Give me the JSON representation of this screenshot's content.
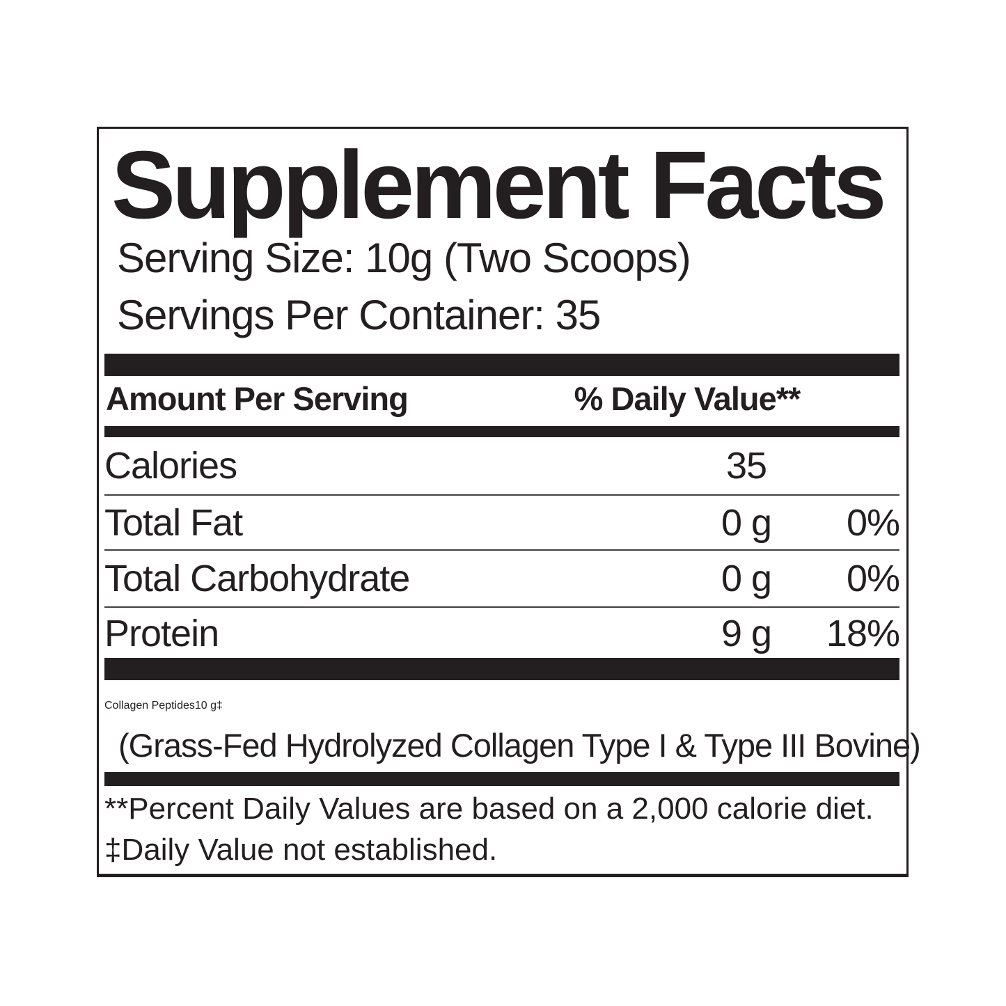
{
  "label": {
    "title": "Supplement Facts",
    "serving_size": "Serving Size: 10g (Two Scoops)",
    "servings_per_container": "Servings Per Container: 35",
    "columns": {
      "amount_header": "Amount Per Serving",
      "dv_header": "% Daily Value**"
    },
    "rows": [
      {
        "name": "Calories",
        "amount": "35",
        "dv": ""
      },
      {
        "name": "Total Fat",
        "amount": "0 g",
        "dv": "0%"
      },
      {
        "name": "Total Carbohydrate",
        "amount": "0 g",
        "dv": "0%"
      },
      {
        "name": "Protein",
        "amount": "9 g",
        "dv": "18%"
      }
    ],
    "supplement_row": {
      "name": "Collagen Peptides",
      "amount": "10 g",
      "dv": "‡",
      "detail": "(Grass-Fed Hydrolyzed Collagen Type I & Type III Bovine)"
    },
    "footnotes": [
      "**Percent Daily Values are based on a 2,000 calorie diet.",
      "‡Daily Value not established."
    ],
    "colors": {
      "ink": "#231f20",
      "background": "#ffffff"
    }
  }
}
